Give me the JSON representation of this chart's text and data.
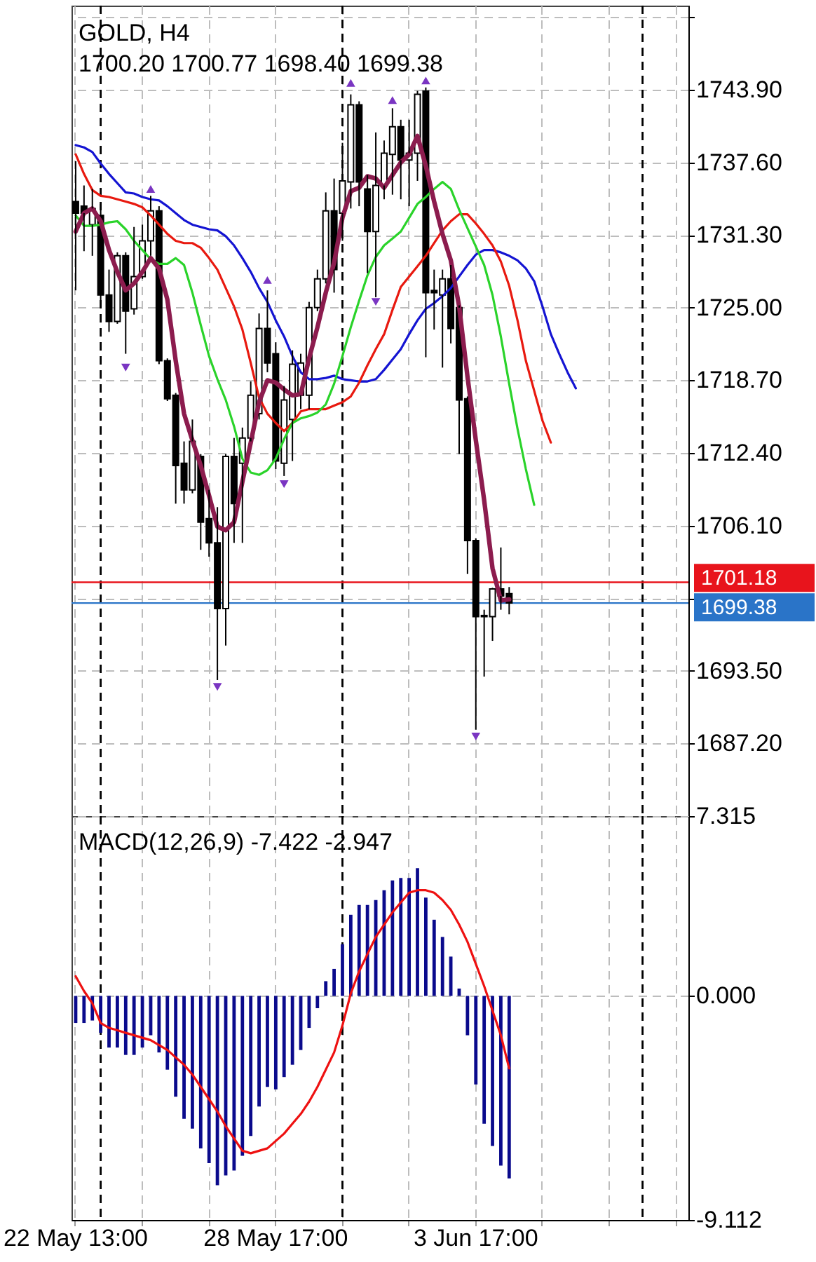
{
  "chart_data": [
    {
      "type": "candlestick",
      "title": "GOLD, H4",
      "subtitle": "1700.20 1700.77 1698.40 1699.38",
      "categories": [
        null,
        null,
        null,
        null,
        null,
        null,
        null,
        null,
        null,
        null,
        null,
        null,
        null,
        null,
        null,
        null,
        null,
        null,
        null,
        null,
        null,
        null,
        null,
        null,
        null,
        null,
        null,
        null,
        null,
        null,
        null,
        null,
        null,
        null,
        null,
        null,
        null,
        null,
        null,
        null,
        null,
        null,
        null,
        null,
        null,
        null,
        null,
        null,
        null,
        null,
        null,
        null,
        null,
        null,
        null,
        null,
        null,
        null,
        null,
        null,
        null,
        null,
        null,
        null,
        null,
        null,
        null,
        null,
        null,
        null,
        null,
        null,
        null,
        null
      ],
      "ohlc": [
        [
          1734.2,
          1737.7,
          1726.5,
          1733.2
        ],
        [
          1733.8,
          1735.6,
          1729.9,
          1733.2
        ],
        [
          1732.2,
          1735.3,
          1729.5,
          1733.6
        ],
        [
          1733.0,
          1734.0,
          1725.0,
          1726.1
        ],
        [
          1726.1,
          1728.3,
          1722.9,
          1723.8
        ],
        [
          1723.8,
          1729.8,
          1723.6,
          1729.5
        ],
        [
          1729.5,
          1729.8,
          1721.0,
          1724.7
        ],
        [
          1724.9,
          1732.0,
          1724.4,
          1727.7
        ],
        [
          1727.7,
          1732.2,
          1727.5,
          1730.8
        ],
        [
          1730.8,
          1734.7,
          1729.5,
          1733.4
        ],
        [
          1733.4,
          1733.8,
          1720.1,
          1720.4
        ],
        [
          1720.4,
          1720.6,
          1716.9,
          1717.1
        ],
        [
          1717.4,
          1717.6,
          1708.0,
          1711.3
        ],
        [
          1711.5,
          1713.4,
          1708.0,
          1709.2
        ],
        [
          1709.2,
          1715.3,
          1708.9,
          1713.4
        ],
        [
          1712.1,
          1712.3,
          1704.0,
          1706.4
        ],
        [
          1706.7,
          1709.2,
          1703.4,
          1704.6
        ],
        [
          1704.6,
          1707.7,
          1692.7,
          1698.9
        ],
        [
          1698.9,
          1712.3,
          1695.7,
          1712.1
        ],
        [
          1712.1,
          1713.7,
          1704.6,
          1708.0
        ],
        [
          1711.5,
          1714.6,
          1704.6,
          1713.7
        ],
        [
          1713.7,
          1718.6,
          1713.4,
          1717.4
        ],
        [
          1715.8,
          1724.5,
          1715.3,
          1723.2
        ],
        [
          1723.2,
          1726.5,
          1719.4,
          1720.2
        ],
        [
          1721.0,
          1722.0,
          1711.0,
          1711.7
        ],
        [
          1711.5,
          1718.2,
          1710.4,
          1717.0
        ],
        [
          1715.3,
          1721.3,
          1711.7,
          1720.1
        ],
        [
          1717.4,
          1721.0,
          1716.2,
          1720.2
        ],
        [
          1717.4,
          1725.5,
          1716.2,
          1725.0
        ],
        [
          1725.0,
          1728.3,
          1724.7,
          1727.5
        ],
        [
          1727.5,
          1735.0,
          1727.1,
          1733.4
        ],
        [
          1733.4,
          1736.2,
          1726.3,
          1728.3
        ],
        [
          1733.2,
          1739.3,
          1730.8,
          1736.0
        ],
        [
          1735.9,
          1743.5,
          1733.6,
          1742.6
        ],
        [
          1742.6,
          1742.9,
          1733.8,
          1735.9
        ],
        [
          1735.3,
          1736.5,
          1728.0,
          1731.6
        ],
        [
          1731.6,
          1740.2,
          1725.9,
          1735.6
        ],
        [
          1735.6,
          1739.5,
          1734.4,
          1738.4
        ],
        [
          1738.3,
          1742.3,
          1734.8,
          1740.7
        ],
        [
          1740.7,
          1741.3,
          1734.4,
          1737.8
        ],
        [
          1737.8,
          1741.3,
          1733.8,
          1738.4
        ],
        [
          1738.4,
          1743.8,
          1736.0,
          1743.5
        ],
        [
          1743.8,
          1744.1,
          1720.7,
          1726.3
        ],
        [
          1726.5,
          1728.3,
          1723.1,
          1726.3
        ],
        [
          1726.1,
          1728.3,
          1719.8,
          1727.5
        ],
        [
          1727.5,
          1728.7,
          1721.9,
          1723.2
        ],
        [
          1725.0,
          1725.2,
          1712.3,
          1717.0
        ],
        [
          1717.1,
          1717.3,
          1701.9,
          1704.8
        ],
        [
          1704.8,
          1705.0,
          1688.4,
          1698.2
        ],
        [
          1698.2,
          1698.8,
          1693.0,
          1698.3
        ],
        [
          1698.2,
          1700.7,
          1696.1,
          1700.6
        ],
        [
          1700.6,
          1704.2,
          1698.8,
          1700.0
        ],
        [
          1700.2,
          1700.77,
          1698.4,
          1699.38
        ],
        null,
        null,
        null,
        null,
        null,
        null,
        null,
        null,
        null,
        null,
        null,
        null,
        null,
        null,
        null,
        null,
        null,
        null,
        null,
        null,
        null
      ],
      "color": "#000000",
      "colors": [
        "#000000",
        "#000000",
        "#ffffff",
        "#000000",
        "#000000",
        "#ffffff",
        "#000000",
        "#ffffff",
        "#ffffff",
        "#ffffff",
        "#000000",
        "#000000",
        "#000000",
        "#000000",
        "#ffffff",
        "#000000",
        "#000000",
        "#000000",
        "#ffffff",
        "#000000",
        "#ffffff",
        "#ffffff",
        "#ffffff",
        "#000000",
        "#000000",
        "#ffffff",
        "#ffffff",
        "#ffffff",
        "#ffffff",
        "#ffffff",
        "#ffffff",
        "#000000",
        "#ffffff",
        "#ffffff",
        "#000000",
        "#000000",
        "#ffffff",
        "#ffffff",
        "#ffffff",
        "#000000",
        "#ffffff",
        "#ffffff",
        "#000000",
        "#000000",
        "#ffffff",
        "#000000",
        "#000000",
        "#000000",
        "#000000",
        "#ffffff",
        "#ffffff",
        "#000000",
        "#000000",
        null,
        null,
        null,
        null,
        null,
        null,
        null,
        null,
        null,
        null,
        null,
        null,
        null,
        null,
        null,
        null,
        null,
        null,
        null,
        null,
        null
      ],
      "series": [
        {
          "type": "line",
          "color": "#1414d2",
          "values": [
            1739.1,
            1738.9,
            1738.5,
            1737.5,
            1736.6,
            1735.8,
            1735.0,
            1734.9,
            1734.6,
            1734.4,
            1734.3,
            1733.8,
            1733.2,
            1732.6,
            1732.2,
            1732.0,
            1731.8,
            1731.7,
            1731.2,
            1730.4,
            1729.3,
            1728.1,
            1726.7,
            1725.5,
            1723.9,
            1722.5,
            1720.8,
            1719.4,
            1718.8,
            1718.8,
            1718.9,
            1719.1,
            1718.8,
            1718.7,
            1718.6,
            1718.6,
            1718.8,
            1719.6,
            1720.5,
            1721.4,
            1722.7,
            1723.9,
            1724.9,
            1725.4,
            1726.0,
            1726.7,
            1727.7,
            1728.7,
            1729.6,
            1730.0,
            1730.0,
            1729.8,
            1729.5,
            1729.1,
            1728.4,
            1727.3,
            1725.1,
            1722.7,
            1721.0,
            1719.4,
            1718.0,
            null,
            null,
            null,
            null,
            null,
            null,
            null,
            null,
            null,
            null,
            null,
            null,
            null
          ]
        },
        {
          "type": "line",
          "color": "#e8190f",
          "values": [
            1738.3,
            1736.6,
            1735.2,
            1734.7,
            1734.6,
            1734.4,
            1734.2,
            1734.0,
            1733.7,
            1733.0,
            1732.2,
            1731.4,
            1730.8,
            1730.6,
            1730.6,
            1730.2,
            1729.3,
            1728.3,
            1726.7,
            1725.1,
            1723.1,
            1720.2,
            1717.2,
            1715.8,
            1715.0,
            1714.3,
            1715.0,
            1716.0,
            1716.2,
            1716.2,
            1716.2,
            1716.5,
            1716.8,
            1717.3,
            1718.5,
            1720.0,
            1721.4,
            1722.7,
            1724.8,
            1726.8,
            1727.7,
            1728.6,
            1729.5,
            1730.6,
            1731.7,
            1732.5,
            1733.1,
            1733.1,
            1732.3,
            1731.4,
            1730.4,
            1729.0,
            1726.9,
            1723.9,
            1720.4,
            1717.8,
            1715.2,
            1713.3,
            null,
            null,
            null,
            null,
            null,
            null,
            null,
            null,
            null,
            null,
            null,
            null,
            null,
            null,
            null,
            null
          ]
        },
        {
          "type": "line",
          "color": "#2ad32a",
          "values": [
            1733.0,
            1732.1,
            1732.1,
            1732.2,
            1732.4,
            1732.5,
            1731.8,
            1730.8,
            1730.0,
            1729.2,
            1728.8,
            1728.8,
            1729.3,
            1728.7,
            1726.3,
            1723.5,
            1720.8,
            1718.8,
            1717.0,
            1714.7,
            1711.9,
            1710.7,
            1710.5,
            1710.9,
            1711.9,
            1713.6,
            1715.0,
            1715.4,
            1715.6,
            1715.9,
            1716.6,
            1718.4,
            1720.8,
            1723.3,
            1725.6,
            1727.8,
            1729.4,
            1730.4,
            1731.0,
            1731.6,
            1732.8,
            1734.0,
            1734.6,
            1735.3,
            1735.9,
            1735.3,
            1733.5,
            1731.9,
            1730.3,
            1728.7,
            1726.1,
            1722.5,
            1718.4,
            1714.5,
            1711.0,
            1707.9,
            null,
            null,
            null,
            null,
            null,
            null,
            null,
            null,
            null,
            null,
            null,
            null,
            null,
            null,
            null,
            null,
            null,
            null
          ]
        },
        {
          "type": "line",
          "color": "#8c1c4e",
          "values": [
            1731.6,
            1733.2,
            1733.6,
            1732.5,
            1730.0,
            1728.1,
            1726.5,
            1727.1,
            1728.1,
            1729.3,
            1728.4,
            1725.7,
            1720.4,
            1715.8,
            1713.5,
            1711.3,
            1708.7,
            1706.0,
            1705.7,
            1706.4,
            1709.9,
            1713.3,
            1716.8,
            1718.7,
            1718.5,
            1717.9,
            1717.4,
            1717.5,
            1720.6,
            1723.3,
            1726.3,
            1728.9,
            1732.8,
            1735.1,
            1735.4,
            1736.4,
            1736.2,
            1735.4,
            1736.5,
            1737.6,
            1738.3,
            1739.9,
            1737.3,
            1734.2,
            1731.4,
            1729.1,
            1725.1,
            1719.0,
            1713.5,
            1708.3,
            1702.4,
            1699.6,
            1699.7,
            null,
            null,
            null,
            null,
            null,
            null,
            null,
            null,
            null,
            null,
            null,
            null,
            null,
            null,
            null,
            null,
            null,
            null,
            null,
            null,
            null
          ]
        },
        {
          "type": "scatter",
          "marker": "triangle",
          "color": "#7a35c2",
          "values": [
            null,
            null,
            null,
            null,
            null,
            null,
            null,
            null,
            null,
            1735.3,
            null,
            null,
            null,
            null,
            null,
            null,
            null,
            null,
            null,
            null,
            null,
            null,
            null,
            1727.4,
            null,
            null,
            null,
            null,
            null,
            null,
            null,
            null,
            null,
            1744.5,
            null,
            null,
            null,
            null,
            1743.0,
            null,
            null,
            null,
            1744.7,
            null,
            null,
            null,
            null,
            null,
            null,
            null,
            null,
            null,
            null,
            null,
            null,
            null,
            null,
            null,
            null,
            null,
            null,
            null,
            null,
            null,
            null,
            null,
            null,
            null,
            null,
            null,
            null,
            null,
            null,
            null
          ]
        },
        {
          "type": "scatter",
          "marker": "triangle",
          "color": "#7a35c2",
          "values": [
            null,
            null,
            null,
            null,
            null,
            null,
            1719.8,
            null,
            null,
            null,
            null,
            null,
            null,
            null,
            null,
            null,
            null,
            1692.1,
            null,
            null,
            null,
            null,
            null,
            null,
            null,
            1709.7,
            null,
            null,
            null,
            null,
            null,
            null,
            null,
            null,
            null,
            null,
            1725.5,
            null,
            null,
            null,
            null,
            null,
            null,
            null,
            null,
            null,
            null,
            null,
            1687.8,
            null,
            null,
            null,
            null,
            null,
            null,
            null,
            null,
            null,
            null,
            null,
            null,
            null,
            null,
            null,
            null,
            null,
            null,
            null,
            null,
            null,
            null,
            null,
            null,
            null
          ]
        }
      ],
      "ylim": [
        1680.9,
        1751.2
      ],
      "yticks": [
        {
          "value": 1687.2,
          "label": "1687.20"
        },
        {
          "value": 1693.5,
          "label": "1693.50"
        },
        {
          "value": 1699.8,
          "label": null
        },
        {
          "value": 1706.1,
          "label": "1706.10"
        },
        {
          "value": 1712.4,
          "label": "1712.40"
        },
        {
          "value": 1718.7,
          "label": "1718.70"
        },
        {
          "value": 1725,
          "label": "1725.00"
        },
        {
          "value": 1731.3,
          "label": "1731.30"
        },
        {
          "value": 1737.6,
          "label": "1737.60"
        },
        {
          "value": 1743.9,
          "label": "1743.90"
        },
        {
          "value": 1750.2,
          "label": null
        }
      ],
      "grid": true,
      "tick_labels": "y",
      "ref_lines": [
        {
          "axis": "y",
          "value": 1701.18,
          "label": "1701.18",
          "color": "#e8141c"
        },
        {
          "axis": "y",
          "value": 1699.38,
          "label": "1699.38",
          "color": "#2a74c8"
        }
      ]
    },
    {
      "type": "bar",
      "title": "MACD(12,26,9) -7.422 -2.947",
      "categories": [
        "22 May 13:00",
        null,
        null,
        null,
        null,
        null,
        null,
        null,
        null,
        null,
        null,
        null,
        null,
        null,
        null,
        null,
        null,
        null,
        null,
        null,
        null,
        null,
        null,
        null,
        "28 May 17:00",
        null,
        null,
        null,
        null,
        null,
        null,
        null,
        null,
        null,
        null,
        null,
        null,
        null,
        null,
        null,
        null,
        null,
        null,
        null,
        null,
        null,
        null,
        null,
        "3 Jun 17:00",
        null,
        null,
        null,
        null,
        null,
        null,
        null,
        null,
        null,
        null,
        null,
        null,
        null,
        null,
        null,
        null,
        null,
        null,
        null,
        null,
        null,
        null,
        null,
        null,
        null
      ],
      "series": [
        {
          "color": "#0a0a8c",
          "values": [
            -1.1,
            -1.1,
            -1.0,
            -1.5,
            -2.1,
            -2.1,
            -2.4,
            -2.4,
            -2.1,
            -1.6,
            -2.3,
            -3.0,
            -4.1,
            -5.0,
            -5.4,
            -6.2,
            -6.8,
            -7.7,
            -7.3,
            -7.1,
            -6.5,
            -5.7,
            -4.5,
            -3.7,
            -3.8,
            -3.3,
            -2.8,
            -2.2,
            -1.3,
            -0.5,
            0.6,
            1.1,
            2.1,
            3.3,
            3.7,
            3.7,
            3.9,
            4.3,
            4.7,
            4.8,
            4.8,
            5.2,
            4.0,
            3.1,
            2.4,
            1.6,
            0.3,
            -1.6,
            -3.6,
            -5.2,
            -6.1,
            -6.9,
            -7.422,
            null,
            null,
            null,
            null,
            null,
            null,
            null,
            null,
            null,
            null,
            null,
            null,
            null,
            null,
            null,
            null,
            null,
            null,
            null,
            null,
            null
          ]
        },
        {
          "type": "line",
          "color": "#ee1111",
          "values": [
            0.8,
            0.2,
            -0.3,
            -1.1,
            -1.3,
            -1.4,
            -1.5,
            -1.6,
            -1.7,
            -1.8,
            -2.0,
            -2.2,
            -2.5,
            -2.8,
            -3.2,
            -3.7,
            -4.2,
            -4.7,
            -5.3,
            -5.8,
            -6.3,
            -6.4,
            -6.3,
            -6.2,
            -5.9,
            -5.6,
            -5.2,
            -4.8,
            -4.3,
            -3.7,
            -3.0,
            -2.3,
            -1.2,
            0.1,
            1.0,
            1.7,
            2.4,
            2.9,
            3.4,
            3.8,
            4.2,
            4.3,
            4.3,
            4.2,
            3.9,
            3.5,
            2.9,
            2.2,
            1.3,
            0.4,
            -0.6,
            -1.6,
            -2.947,
            null,
            null,
            null,
            null,
            null,
            null,
            null,
            null,
            null,
            null,
            null,
            null,
            null,
            null,
            null,
            null,
            null,
            null,
            null,
            null,
            null
          ]
        }
      ],
      "ylim": [
        -9.112,
        7.315
      ],
      "yticks": [
        7.315,
        {
          "value": 0,
          "label": "0.000"
        },
        -9.112
      ],
      "grid": true
    }
  ]
}
